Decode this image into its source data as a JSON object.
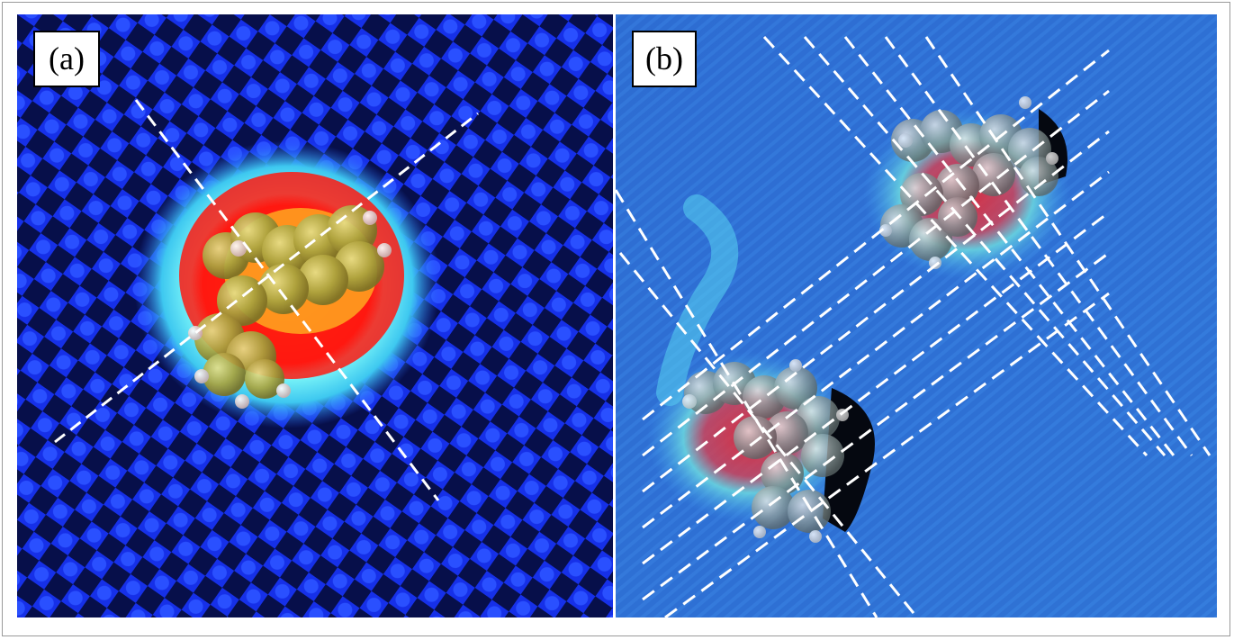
{
  "panels": [
    {
      "label": "(a)"
    },
    {
      "label": "(b)"
    }
  ],
  "colors": {
    "substrate_blue": "#1a3cff",
    "substrate_dark": "#061040",
    "panel_b_blue": "#2f74d8",
    "halo_cyan": "#5ff4f0",
    "hot_red": "#ff1010",
    "hot_yellow": "#ffe020",
    "molecule_olive": "#a8a842",
    "guide_lines": "#ffffff"
  }
}
